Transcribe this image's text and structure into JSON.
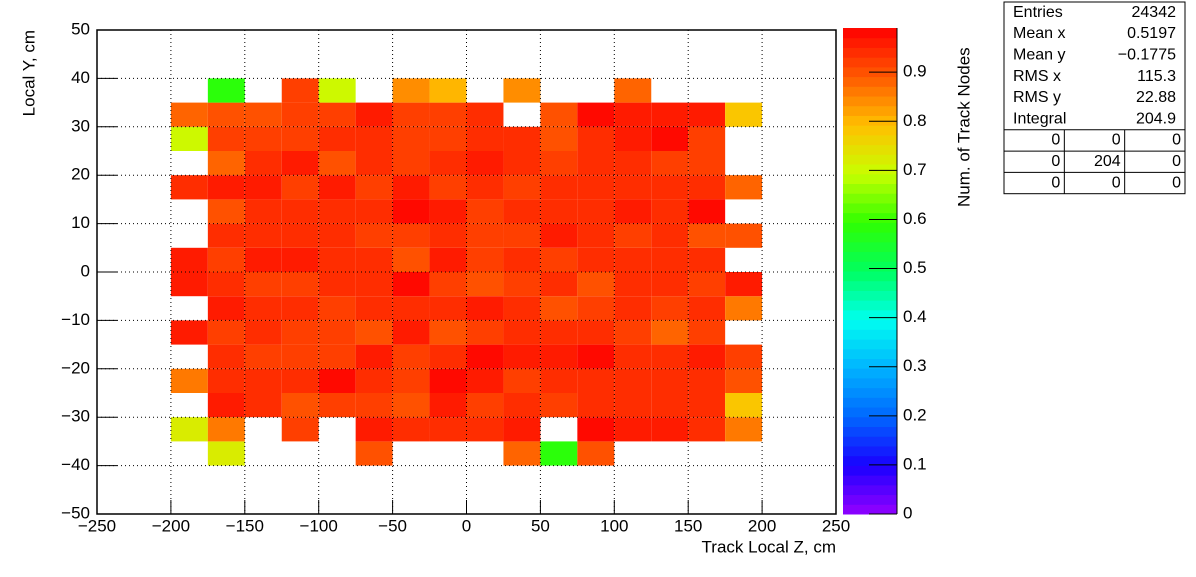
{
  "chart_data": {
    "type": "heatmap",
    "x_label": "Track Local Z, cm",
    "y_label": "Local Y, cm",
    "z_label": "Num. of Track Nodes",
    "xlim": [
      -250,
      250
    ],
    "ylim": [
      -50,
      50
    ],
    "zlim": [
      0,
      0.99
    ],
    "xticks": [
      {
        "value": -250,
        "label": "−250"
      },
      {
        "value": -200,
        "label": "−200"
      },
      {
        "value": -150,
        "label": "−150"
      },
      {
        "value": -100,
        "label": "−100"
      },
      {
        "value": -50,
        "label": "−50"
      },
      0,
      50,
      100,
      150,
      200,
      250
    ],
    "yticks": [
      {
        "value": -50,
        "label": "−50"
      },
      {
        "value": -40,
        "label": "−40"
      },
      {
        "value": -30,
        "label": "−30"
      },
      {
        "value": -20,
        "label": "−20"
      },
      {
        "value": -10,
        "label": "−10"
      },
      0,
      10,
      20,
      30,
      40,
      50
    ],
    "zticks": [
      0,
      0.1,
      0.2,
      0.3,
      0.4,
      0.5,
      0.6,
      0.7,
      0.8,
      0.9
    ],
    "grid": true,
    "palette": [
      "#9400ff",
      "#1a00ff",
      "#0066ff",
      "#00b3ff",
      "#00fff0",
      "#00ff60",
      "#30ff00",
      "#c8ff00",
      "#ffc000",
      "#ff5a00",
      "#ff0000"
    ],
    "palette_steps": 50,
    "xbins": [
      -200,
      -175,
      -150,
      -125,
      -100,
      -75,
      -50,
      -25,
      0,
      25,
      50,
      75,
      100,
      125,
      150,
      175,
      200
    ],
    "ybins": [
      -40,
      -35,
      -30,
      -25,
      -20,
      -15,
      -10,
      -5,
      0,
      5,
      10,
      15,
      20,
      25,
      30,
      35,
      40
    ],
    "z": [
      [
        null,
        0.72,
        null,
        null,
        null,
        0.9,
        null,
        null,
        null,
        0.88,
        0.58,
        0.9,
        null,
        null,
        null,
        null
      ],
      [
        0.72,
        0.86,
        null,
        0.92,
        null,
        0.96,
        0.94,
        0.94,
        0.94,
        0.97,
        null,
        0.98,
        0.97,
        0.97,
        0.94,
        0.87
      ],
      [
        null,
        0.96,
        0.94,
        0.9,
        0.93,
        0.93,
        0.9,
        0.96,
        0.92,
        0.95,
        0.92,
        0.94,
        0.95,
        0.95,
        0.95,
        0.78
      ],
      [
        0.86,
        0.94,
        0.94,
        0.94,
        0.98,
        0.94,
        0.93,
        0.98,
        0.96,
        0.92,
        0.94,
        0.94,
        0.95,
        0.95,
        0.94,
        0.9
      ],
      [
        null,
        0.94,
        0.92,
        0.93,
        0.92,
        0.96,
        0.92,
        0.94,
        0.98,
        0.96,
        0.96,
        0.98,
        0.94,
        0.94,
        0.96,
        0.93
      ],
      [
        0.97,
        0.93,
        0.94,
        0.92,
        0.93,
        0.9,
        0.96,
        0.9,
        0.92,
        0.95,
        0.95,
        0.95,
        0.93,
        0.89,
        0.93,
        null
      ],
      [
        null,
        0.96,
        0.95,
        0.94,
        0.92,
        0.95,
        0.94,
        0.94,
        0.96,
        0.94,
        0.9,
        0.93,
        0.94,
        0.92,
        0.95,
        0.86
      ],
      [
        0.97,
        0.94,
        0.93,
        0.92,
        0.95,
        0.95,
        0.98,
        0.93,
        0.91,
        0.93,
        0.95,
        0.9,
        0.94,
        0.94,
        0.93,
        0.96
      ],
      [
        0.97,
        0.92,
        0.97,
        0.97,
        0.95,
        0.95,
        0.9,
        0.97,
        0.93,
        0.95,
        0.92,
        0.95,
        0.94,
        0.94,
        0.95,
        null
      ],
      [
        null,
        0.94,
        0.94,
        0.94,
        0.95,
        0.92,
        0.92,
        0.94,
        0.93,
        0.92,
        0.96,
        0.94,
        0.92,
        0.94,
        0.91,
        0.91
      ],
      [
        null,
        0.9,
        0.94,
        0.94,
        0.94,
        0.94,
        0.98,
        0.96,
        0.93,
        0.94,
        0.95,
        0.95,
        0.96,
        0.94,
        0.98,
        null
      ],
      [
        0.95,
        0.96,
        0.96,
        0.92,
        0.96,
        0.92,
        0.96,
        0.92,
        0.95,
        0.92,
        0.95,
        0.95,
        0.94,
        0.94,
        0.94,
        0.88
      ],
      [
        null,
        0.88,
        0.94,
        0.97,
        0.9,
        0.94,
        0.92,
        0.94,
        0.97,
        0.95,
        0.92,
        0.94,
        0.94,
        0.92,
        0.93,
        null
      ],
      [
        0.7,
        0.93,
        0.93,
        0.92,
        0.94,
        0.94,
        0.93,
        0.92,
        0.94,
        0.94,
        0.9,
        0.94,
        0.96,
        0.98,
        0.93,
        null
      ],
      [
        0.88,
        0.9,
        0.9,
        0.92,
        0.93,
        0.96,
        0.93,
        0.92,
        0.95,
        null,
        0.9,
        0.98,
        0.97,
        0.97,
        0.96,
        0.78
      ],
      [
        null,
        0.58,
        null,
        0.93,
        0.7,
        null,
        0.85,
        0.8,
        null,
        0.85,
        null,
        null,
        0.88,
        null,
        null,
        null
      ]
    ],
    "stats": {
      "rows": [
        [
          "Entries",
          24342
        ],
        [
          "Mean x",
          0.5197
        ],
        [
          "Mean y",
          "−0.1775"
        ],
        [
          "RMS x",
          115.3
        ],
        [
          "RMS y",
          22.88
        ],
        [
          "Integral",
          204.9
        ]
      ],
      "grid": [
        [
          0,
          0,
          0
        ],
        [
          0,
          204,
          0
        ],
        [
          0,
          0,
          0
        ]
      ]
    }
  }
}
